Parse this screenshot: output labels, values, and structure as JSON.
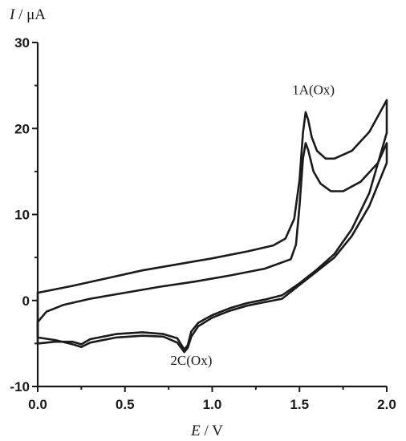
{
  "chart_data": {
    "type": "line",
    "ylabel": {
      "symbol": "I",
      "unit": " / μA"
    },
    "xlabel": {
      "symbol": "E",
      "unit": " / V"
    },
    "xlim": [
      0.0,
      2.0
    ],
    "ylim": [
      -10,
      30
    ],
    "x_ticks": [
      "0.0",
      "0.5",
      "1.0",
      "1.5",
      "2.0"
    ],
    "x_tick_values": [
      0.0,
      0.5,
      1.0,
      1.5,
      2.0
    ],
    "y_ticks": [
      "-10",
      "0",
      "10",
      "20",
      "30"
    ],
    "y_tick_values": [
      -10,
      0,
      10,
      20,
      30
    ],
    "grid": false,
    "annotations": [
      {
        "text": "1A(Ox)",
        "x": 1.58,
        "y": 24.0
      },
      {
        "text": "2C(Ox)",
        "x": 0.88,
        "y": -7.5
      }
    ],
    "series": [
      {
        "values": [
          [
            0.0,
            0.9
          ],
          [
            0.2,
            1.7
          ],
          [
            0.4,
            2.6
          ],
          [
            0.6,
            3.5
          ],
          [
            0.8,
            4.2
          ],
          [
            1.0,
            4.9
          ],
          [
            1.2,
            5.7
          ],
          [
            1.35,
            6.4
          ],
          [
            1.42,
            7.2
          ],
          [
            1.47,
            9.5
          ],
          [
            1.5,
            14.0
          ],
          [
            1.52,
            19.5
          ],
          [
            1.535,
            21.9
          ],
          [
            1.55,
            21.0
          ],
          [
            1.57,
            19.0
          ],
          [
            1.6,
            17.4
          ],
          [
            1.65,
            16.5
          ],
          [
            1.7,
            16.5
          ],
          [
            1.8,
            17.4
          ],
          [
            1.9,
            19.6
          ],
          [
            2.0,
            23.3
          ],
          [
            2.0,
            19.5
          ],
          [
            1.9,
            12.5
          ],
          [
            1.8,
            8.3
          ],
          [
            1.7,
            5.4
          ],
          [
            1.6,
            3.6
          ],
          [
            1.5,
            2.0
          ],
          [
            1.4,
            0.6
          ],
          [
            1.3,
            0.1
          ],
          [
            1.2,
            -0.3
          ],
          [
            1.1,
            -0.9
          ],
          [
            1.0,
            -1.7
          ],
          [
            0.92,
            -2.6
          ],
          [
            0.88,
            -3.6
          ],
          [
            0.86,
            -5.2
          ],
          [
            0.84,
            -5.7
          ],
          [
            0.8,
            -4.4
          ],
          [
            0.72,
            -3.9
          ],
          [
            0.6,
            -3.7
          ],
          [
            0.45,
            -3.9
          ],
          [
            0.3,
            -4.5
          ],
          [
            0.25,
            -5.1
          ],
          [
            0.2,
            -4.8
          ],
          [
            0.1,
            -4.8
          ],
          [
            0.0,
            -5.0
          ]
        ]
      },
      {
        "values": [
          [
            0.0,
            -2.5
          ],
          [
            0.05,
            -1.3
          ],
          [
            0.15,
            -0.5
          ],
          [
            0.3,
            0.2
          ],
          [
            0.5,
            0.9
          ],
          [
            0.7,
            1.6
          ],
          [
            0.9,
            2.2
          ],
          [
            1.1,
            2.9
          ],
          [
            1.3,
            3.7
          ],
          [
            1.45,
            4.8
          ],
          [
            1.48,
            6.5
          ],
          [
            1.5,
            11.0
          ],
          [
            1.52,
            16.5
          ],
          [
            1.535,
            18.3
          ],
          [
            1.55,
            17.5
          ],
          [
            1.58,
            15.0
          ],
          [
            1.62,
            13.6
          ],
          [
            1.68,
            12.7
          ],
          [
            1.75,
            12.7
          ],
          [
            1.85,
            13.8
          ],
          [
            1.95,
            16.0
          ],
          [
            2.0,
            18.3
          ],
          [
            2.0,
            16.0
          ],
          [
            1.9,
            11.0
          ],
          [
            1.8,
            7.5
          ],
          [
            1.7,
            5.0
          ],
          [
            1.6,
            3.4
          ],
          [
            1.5,
            1.8
          ],
          [
            1.4,
            0.2
          ],
          [
            1.3,
            -0.2
          ],
          [
            1.2,
            -0.6
          ],
          [
            1.1,
            -1.2
          ],
          [
            1.0,
            -2.0
          ],
          [
            0.92,
            -3.0
          ],
          [
            0.88,
            -4.2
          ],
          [
            0.86,
            -5.5
          ],
          [
            0.84,
            -6.0
          ],
          [
            0.8,
            -4.9
          ],
          [
            0.72,
            -4.2
          ],
          [
            0.6,
            -4.1
          ],
          [
            0.45,
            -4.3
          ],
          [
            0.3,
            -4.9
          ],
          [
            0.25,
            -5.4
          ],
          [
            0.2,
            -5.1
          ],
          [
            0.1,
            -4.6
          ],
          [
            0.0,
            -4.3
          ]
        ]
      }
    ]
  }
}
